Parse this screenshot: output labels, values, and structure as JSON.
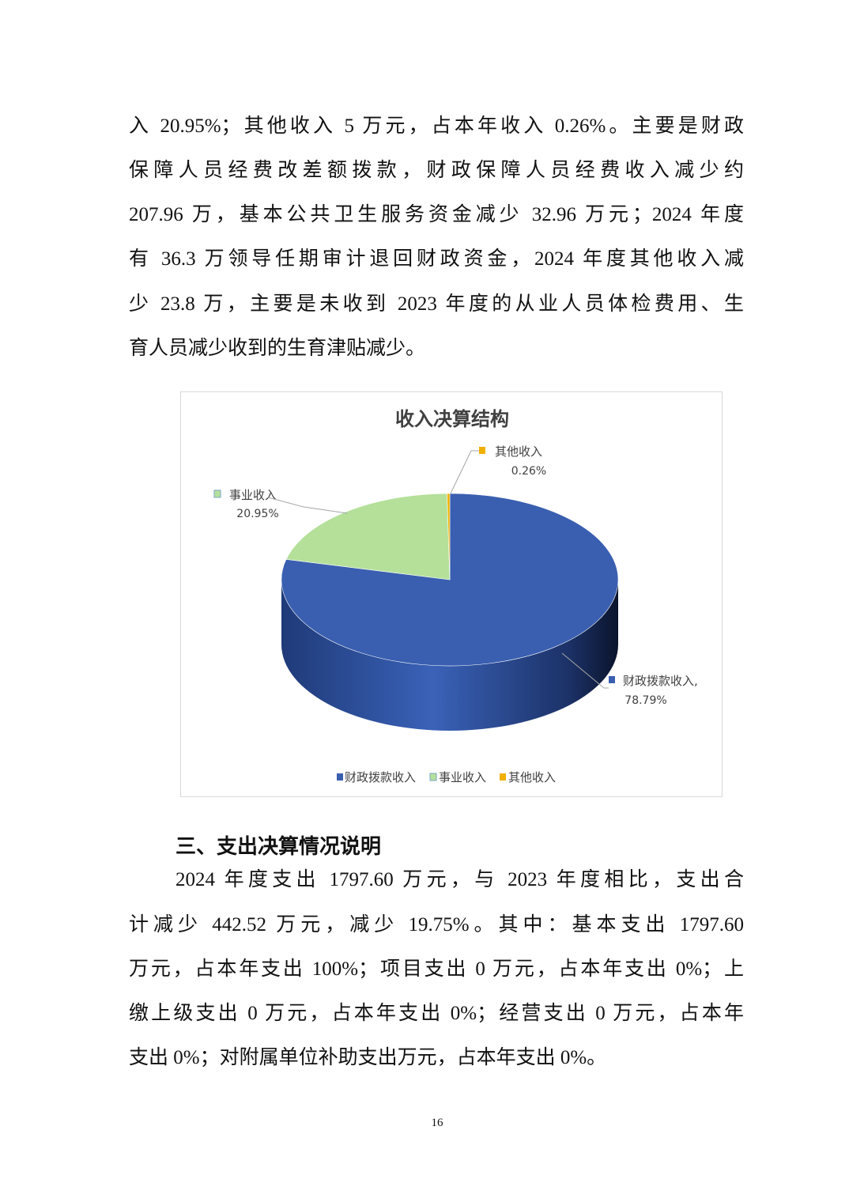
{
  "paragraph1": [
    "入 20.95%；其他收入 5 万元，占本年收入 0.26%。主要是财政",
    "保障人员经费改差额拨款，财政保障人员经费收入减少约",
    "207.96 万，基本公共卫生服务资金减少 32.96 万元；2024 年度",
    "有 36.3 万领导任期审计退回财政资金，2024 年度其他收入减",
    "少 23.8 万，主要是未收到 2023 年度的从业人员体检费用、生",
    "育人员减少收到的生育津贴减少。"
  ],
  "chart_data": {
    "type": "pie",
    "style": "3d",
    "title": "收入决算结构",
    "categories": [
      "财政拨款收入",
      "事业收入",
      "其他收入"
    ],
    "values": [
      78.79,
      20.95,
      0.26
    ],
    "unit": "%",
    "data_labels": [
      {
        "name": "财政拨款收入,",
        "value": "78.79%"
      },
      {
        "name": "事业收入",
        "value": "20.95%"
      },
      {
        "name": "其他收入",
        "value": "0.26%"
      }
    ],
    "colors": [
      "#3A5FB0",
      "#B4E09A",
      "#F0B000"
    ],
    "legend": [
      "财政拨款收入",
      "事业收入",
      "其他收入"
    ],
    "legend_position": "bottom"
  },
  "section_heading": "三、支出决算情况说明",
  "paragraph2": [
    "2024 年度支出 1797.60 万元，与 2023 年度相比，支出合",
    "计减少 442.52 万元，减少 19.75%。其中：基本支出 1797.60",
    "万元，占本年支出 100%；项目支出 0 万元，占本年支出 0%；上",
    "缴上级支出 0 万元，占本年支出 0%；经营支出 0 万元，占本年",
    "支出 0%；对附属单位补助支出万元，占本年支出 0%。"
  ],
  "page_number": "16"
}
